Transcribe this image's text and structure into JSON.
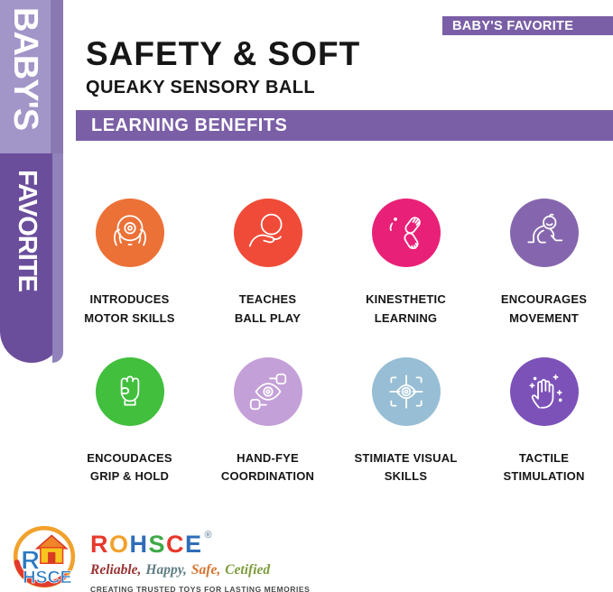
{
  "ribbon": {
    "top_label": "BABY'S",
    "bottom_label": "FAVORITE",
    "top_bg": "#a295c8",
    "top_edge": "#8a79b1",
    "bottom_bg": "#6b4e9b",
    "bottom_edge": "#9182bb"
  },
  "badge": {
    "label": "BABY'S FAVORITE",
    "bg": "#7a5fa6"
  },
  "header": {
    "title": "SAFETY & SOFT",
    "subtitle": "QUEAKY SENSORY BALL"
  },
  "section_bar": {
    "label": "LEARNING BENEFITS",
    "bg": "#7a5fa6"
  },
  "benefits": [
    {
      "label": "INTRODUCES\nMOTOR SKILLS",
      "color": "#ec7137",
      "icon": "motor-skills"
    },
    {
      "label": "TEACHES\nBALL PLAY",
      "color": "#f04b38",
      "icon": "ball-play"
    },
    {
      "label": "KINESTHETIC\nLEARNING",
      "color": "#e92077",
      "icon": "clapping-hands"
    },
    {
      "label": "ENCOURAGES\nMOVEMENT",
      "color": "#8566ae",
      "icon": "crawling-baby"
    },
    {
      "label": "ENCOUDACES\nGRIP & HOLD",
      "color": "#41bf3d",
      "icon": "fist-grip"
    },
    {
      "label": "HAND-FYE\nCOORDINATION",
      "color": "#c4a0d8",
      "icon": "hand-eye"
    },
    {
      "label": "STIMIATE VISUAL\nSKILLS",
      "color": "#97bed4",
      "icon": "visual-focus"
    },
    {
      "label": "TACTILE\nSTIMULATION",
      "color": "#7c52b9",
      "icon": "tactile-hand"
    }
  ],
  "footer": {
    "brand_letters": [
      {
        "ch": "R",
        "color": "#e6392b"
      },
      {
        "ch": "O",
        "color": "#f2a12c"
      },
      {
        "ch": "H",
        "color": "#2e6db8"
      },
      {
        "ch": "S",
        "color": "#3fa948"
      },
      {
        "ch": "C",
        "color": "#e6392b"
      },
      {
        "ch": "E",
        "color": "#2e6db8"
      }
    ],
    "registered_mark": "®",
    "tagline_words": [
      {
        "text": "Reliable,",
        "color": "#9a3434"
      },
      {
        "text": "Happy,",
        "color": "#5f7d84"
      },
      {
        "text": "Safe,",
        "color": "#d8742f"
      },
      {
        "text": "Cetified",
        "color": "#7d9c3c"
      }
    ],
    "slogan": "CREATING TRUSTED TOYS FOR LASTING MEMORIES",
    "logo": {
      "monogram_r": "R",
      "monogram_rest": "HSCE"
    }
  }
}
